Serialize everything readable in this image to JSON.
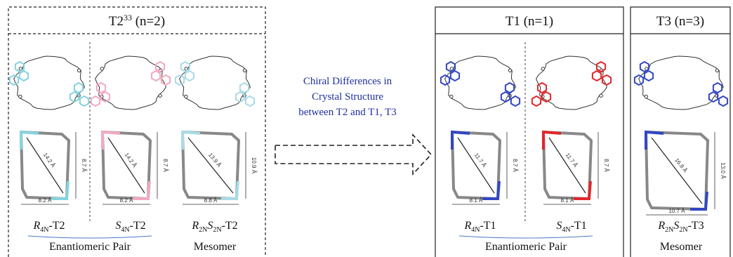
{
  "panels": [
    {
      "title": {
        "main": "T2",
        "sup": "33",
        "rest": " (n=2)"
      },
      "groups": [
        {
          "name": "Enantiomeric Pair",
          "molecules": [
            {
              "label": [
                [
                  "R",
                  "4N"
                ]
              ],
              "suffix": "-T2",
              "color": "#86d3de",
              "dimensions": {
                "diagonal": "14.2 Å",
                "height": "8.7 Å",
                "width": "8.2 Å"
              }
            },
            {
              "label": [
                [
                  "S",
                  "4N"
                ]
              ],
              "suffix": "-T2",
              "color": "#f2a9c0",
              "dimensions": {
                "diagonal": "14.2 Å",
                "height": "8.7 Å",
                "width": "8.2 Å"
              }
            }
          ]
        },
        {
          "name": "Mesomer",
          "molecules": [
            {
              "label": [
                [
                  "R",
                  "2N"
                ],
                [
                  "S",
                  "2N"
                ]
              ],
              "suffix": "-T2",
              "color": "#a9dbe6",
              "dimensions": {
                "diagonal": "13.9 Å",
                "height": "10.9 Å",
                "width": "8.8 Å"
              }
            }
          ]
        }
      ]
    },
    {
      "title": {
        "main": "T1",
        "sup": "",
        "rest": " (n=1)"
      },
      "groups": [
        {
          "name": "Enantiomeric Pair",
          "molecules": [
            {
              "label": [
                [
                  "R",
                  "4N"
                ]
              ],
              "suffix": "-T1",
              "color": "#3347c2",
              "dimensions": {
                "diagonal": "11.7 Å",
                "height": "8.7 Å",
                "width": "8.1 Å"
              }
            },
            {
              "label": [
                [
                  "S",
                  "4N"
                ]
              ],
              "suffix": "-T1",
              "color": "#e0282c",
              "dimensions": {
                "diagonal": "11.7 Å",
                "height": "8.7 Å",
                "width": "8.1 Å"
              }
            }
          ]
        }
      ]
    },
    {
      "title": {
        "main": "T3",
        "sup": "",
        "rest": " (n=3)"
      },
      "groups": [
        {
          "name": "Mesomer",
          "molecules": [
            {
              "label": [
                [
                  "R",
                  "2N"
                ],
                [
                  "S",
                  "2N"
                ]
              ],
              "suffix": "-T3",
              "color": "#3347c2",
              "dimensions": {
                "diagonal": "16.8 Å",
                "height": "13.0 Å",
                "width": "10.7 Å"
              }
            }
          ]
        }
      ]
    }
  ],
  "arrow": {
    "lines": [
      "Chiral Differences in",
      "Crystal Structure",
      "between T2 and T1, T3"
    ]
  }
}
